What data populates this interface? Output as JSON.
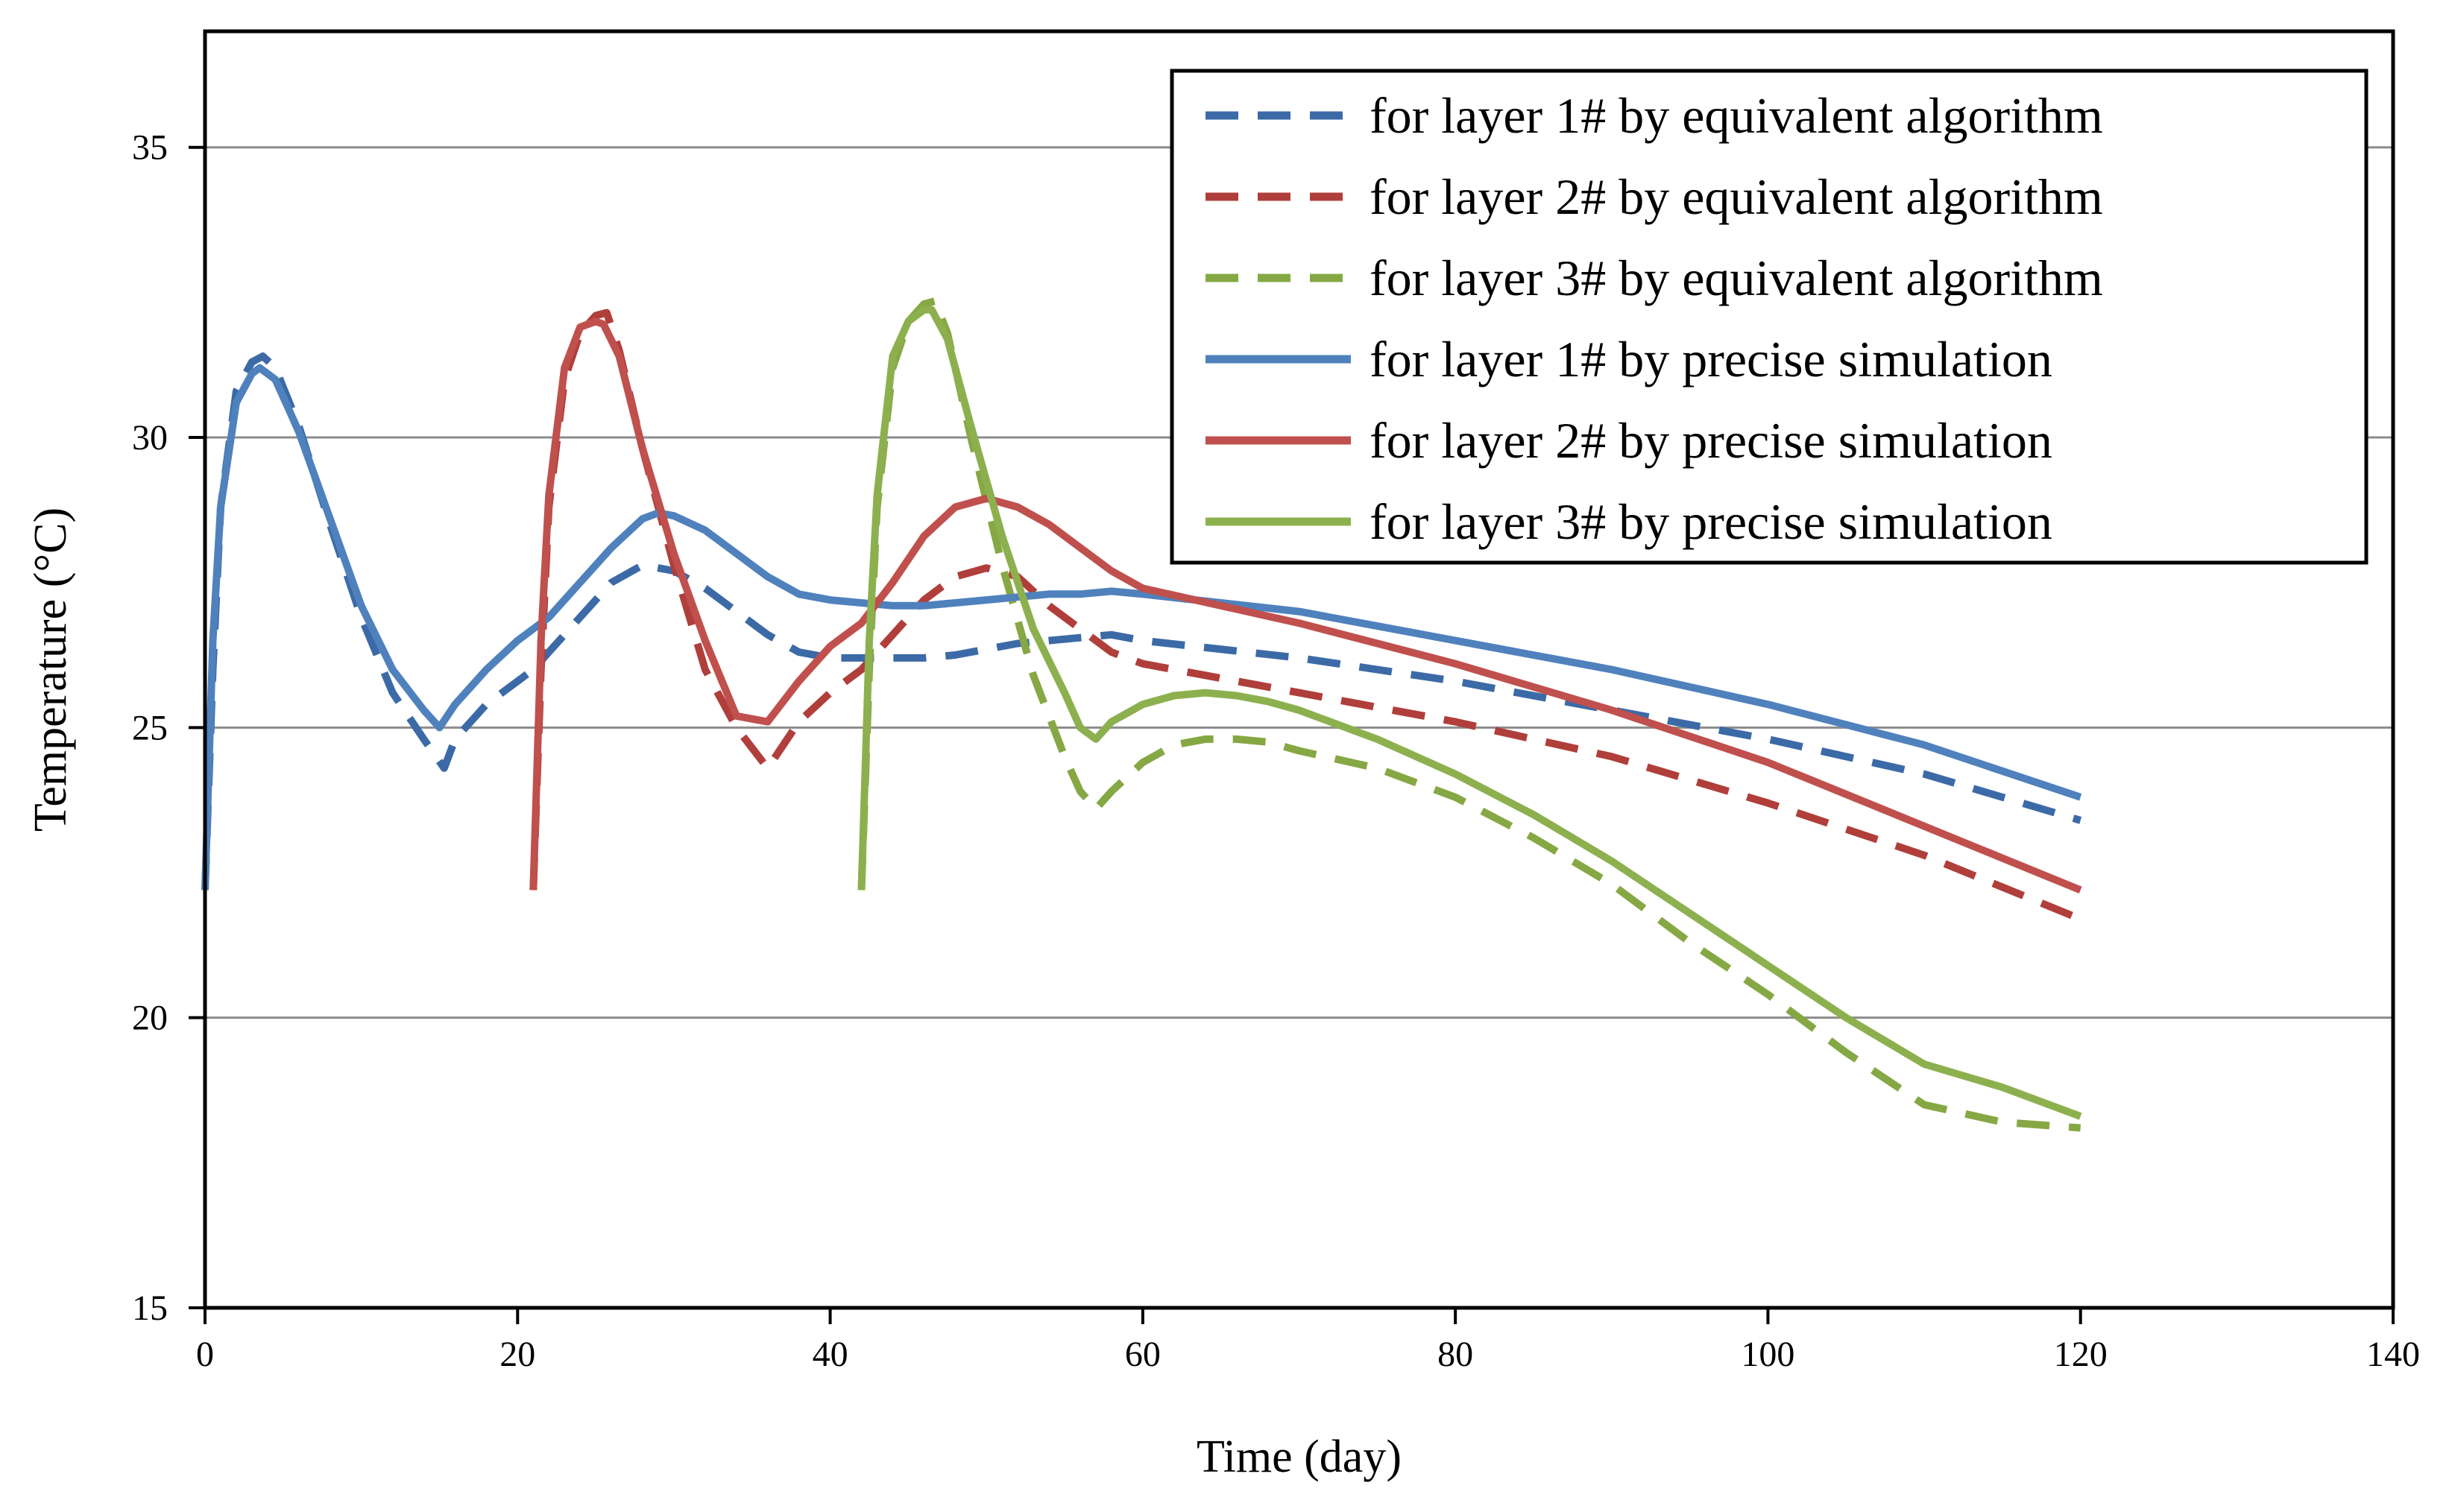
{
  "chart_data": {
    "type": "line",
    "title": "",
    "xlabel": "Time (day)",
    "ylabel": "Temperature (°C)",
    "xlim": [
      0,
      140
    ],
    "ylim": [
      15,
      37
    ],
    "xticks": [
      0,
      20,
      40,
      60,
      80,
      100,
      120,
      140
    ],
    "yticks": [
      15,
      20,
      25,
      30,
      35
    ],
    "grid": "horizontal",
    "legend_position": "top-right",
    "series": [
      {
        "name": "for layer 1# by equivalent algorithm",
        "color": "#3c6aa7",
        "style": "dashed",
        "x": [
          0,
          0.5,
          1,
          2,
          3,
          3.7,
          4.5,
          6,
          8,
          10,
          12,
          14,
          15.3,
          16,
          18,
          20,
          21,
          22,
          24,
          26,
          28,
          30,
          32,
          34,
          36,
          38,
          40,
          42,
          44,
          46,
          48,
          50,
          52,
          54,
          56,
          58,
          60,
          70,
          80,
          90,
          100,
          110,
          120
        ],
        "y": [
          22.2,
          26,
          28.8,
          30.8,
          31.3,
          31.4,
          31.2,
          30.2,
          28.5,
          26.9,
          25.6,
          24.8,
          24.3,
          24.8,
          25.4,
          25.8,
          26.0,
          26.3,
          26.9,
          27.5,
          27.8,
          27.7,
          27.4,
          27.0,
          26.6,
          26.3,
          26.2,
          26.2,
          26.2,
          26.2,
          26.25,
          26.35,
          26.45,
          26.5,
          26.55,
          26.6,
          26.5,
          26.2,
          25.8,
          25.3,
          24.8,
          24.2,
          23.4
        ]
      },
      {
        "name": "for layer 2# by equivalent algorithm",
        "color": "#b03e3a",
        "style": "dashed",
        "x": [
          21,
          21.5,
          22,
          23,
          24,
          25,
          25.7,
          26.5,
          28,
          30,
          32,
          34,
          36,
          37,
          38,
          40,
          42,
          44,
          46,
          48,
          50,
          52,
          54,
          56,
          58,
          60,
          70,
          80,
          90,
          100,
          110,
          120
        ],
        "y": [
          22.2,
          26,
          28.8,
          31.0,
          31.8,
          32.1,
          32.15,
          31.5,
          29.8,
          27.8,
          26.0,
          25.0,
          24.3,
          24.7,
          25.1,
          25.6,
          26.0,
          26.6,
          27.2,
          27.6,
          27.75,
          27.6,
          27.1,
          26.7,
          26.3,
          26.1,
          25.6,
          25.1,
          24.5,
          23.7,
          22.8,
          21.7
        ]
      },
      {
        "name": "for layer 3# by equivalent algorithm",
        "color": "#86a844",
        "style": "dashed",
        "x": [
          42,
          42.5,
          43,
          44,
          45,
          46,
          46.7,
          47.5,
          49,
          51,
          53,
          55,
          56,
          57,
          58,
          60,
          62,
          64,
          66,
          68,
          70,
          75,
          80,
          85,
          90,
          95,
          100,
          105,
          110,
          115,
          120
        ],
        "y": [
          22.2,
          26,
          28.8,
          31.2,
          32.0,
          32.3,
          32.35,
          31.8,
          30.0,
          27.8,
          25.9,
          24.5,
          23.9,
          23.6,
          23.9,
          24.4,
          24.7,
          24.8,
          24.8,
          24.75,
          24.6,
          24.3,
          23.8,
          23.1,
          22.3,
          21.3,
          20.4,
          19.4,
          18.5,
          18.2,
          18.1
        ]
      },
      {
        "name": "for layer 1# by precise simulation",
        "color": "#4f81bd",
        "style": "solid",
        "x": [
          0,
          0.5,
          1,
          2,
          3,
          3.5,
          4.5,
          6,
          8,
          10,
          12,
          14,
          15,
          16,
          18,
          20,
          22,
          24,
          26,
          28,
          29,
          30,
          32,
          34,
          36,
          38,
          40,
          42,
          44,
          46,
          48,
          50,
          52,
          54,
          56,
          58,
          60,
          70,
          80,
          90,
          100,
          110,
          120
        ],
        "y": [
          22.2,
          26.5,
          28.8,
          30.6,
          31.1,
          31.2,
          31.0,
          30.1,
          28.6,
          27.1,
          26.0,
          25.3,
          25.0,
          25.4,
          26.0,
          26.5,
          26.9,
          27.5,
          28.1,
          28.6,
          28.7,
          28.65,
          28.4,
          28.0,
          27.6,
          27.3,
          27.2,
          27.15,
          27.1,
          27.1,
          27.15,
          27.2,
          27.25,
          27.3,
          27.3,
          27.35,
          27.3,
          27.0,
          26.5,
          26.0,
          25.4,
          24.7,
          23.8
        ]
      },
      {
        "name": "for layer 2# by precise simulation",
        "color": "#c0504d",
        "style": "solid",
        "x": [
          21,
          21.5,
          22,
          23,
          24,
          25,
          25.5,
          26.5,
          28,
          30,
          32,
          34,
          36,
          38,
          40,
          42,
          44,
          46,
          48,
          50,
          52,
          54,
          56,
          58,
          60,
          70,
          80,
          90,
          100,
          110,
          120
        ],
        "y": [
          22.2,
          26.5,
          29.0,
          31.2,
          31.9,
          32.0,
          31.95,
          31.4,
          29.8,
          28.0,
          26.5,
          25.2,
          25.1,
          25.8,
          26.4,
          26.8,
          27.5,
          28.3,
          28.8,
          28.95,
          28.8,
          28.5,
          28.1,
          27.7,
          27.4,
          26.8,
          26.1,
          25.3,
          24.4,
          23.3,
          22.2
        ]
      },
      {
        "name": "for layer 3# by precise simulation",
        "color": "#8db04f",
        "style": "solid",
        "x": [
          42,
          42.5,
          43,
          44,
          45,
          46,
          46.5,
          47.5,
          49,
          51,
          53,
          55,
          56,
          57,
          58,
          60,
          62,
          64,
          66,
          68,
          70,
          75,
          80,
          85,
          90,
          95,
          100,
          105,
          110,
          115,
          120
        ],
        "y": [
          22.2,
          26.5,
          29.0,
          31.4,
          32.0,
          32.2,
          32.2,
          31.7,
          30.2,
          28.3,
          26.7,
          25.6,
          25.0,
          24.8,
          25.1,
          25.4,
          25.55,
          25.6,
          25.55,
          25.45,
          25.3,
          24.8,
          24.2,
          23.5,
          22.7,
          21.8,
          20.9,
          20.0,
          19.2,
          18.8,
          18.3
        ]
      }
    ]
  }
}
